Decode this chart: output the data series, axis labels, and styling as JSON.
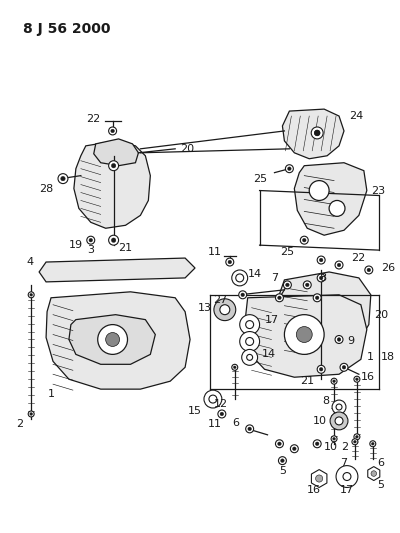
{
  "title": "8 J 56 2000",
  "bg_color": "#ffffff",
  "lc": "#1a1a1a",
  "lw": 0.9,
  "fig_width": 4.0,
  "fig_height": 5.33,
  "dpi": 100
}
